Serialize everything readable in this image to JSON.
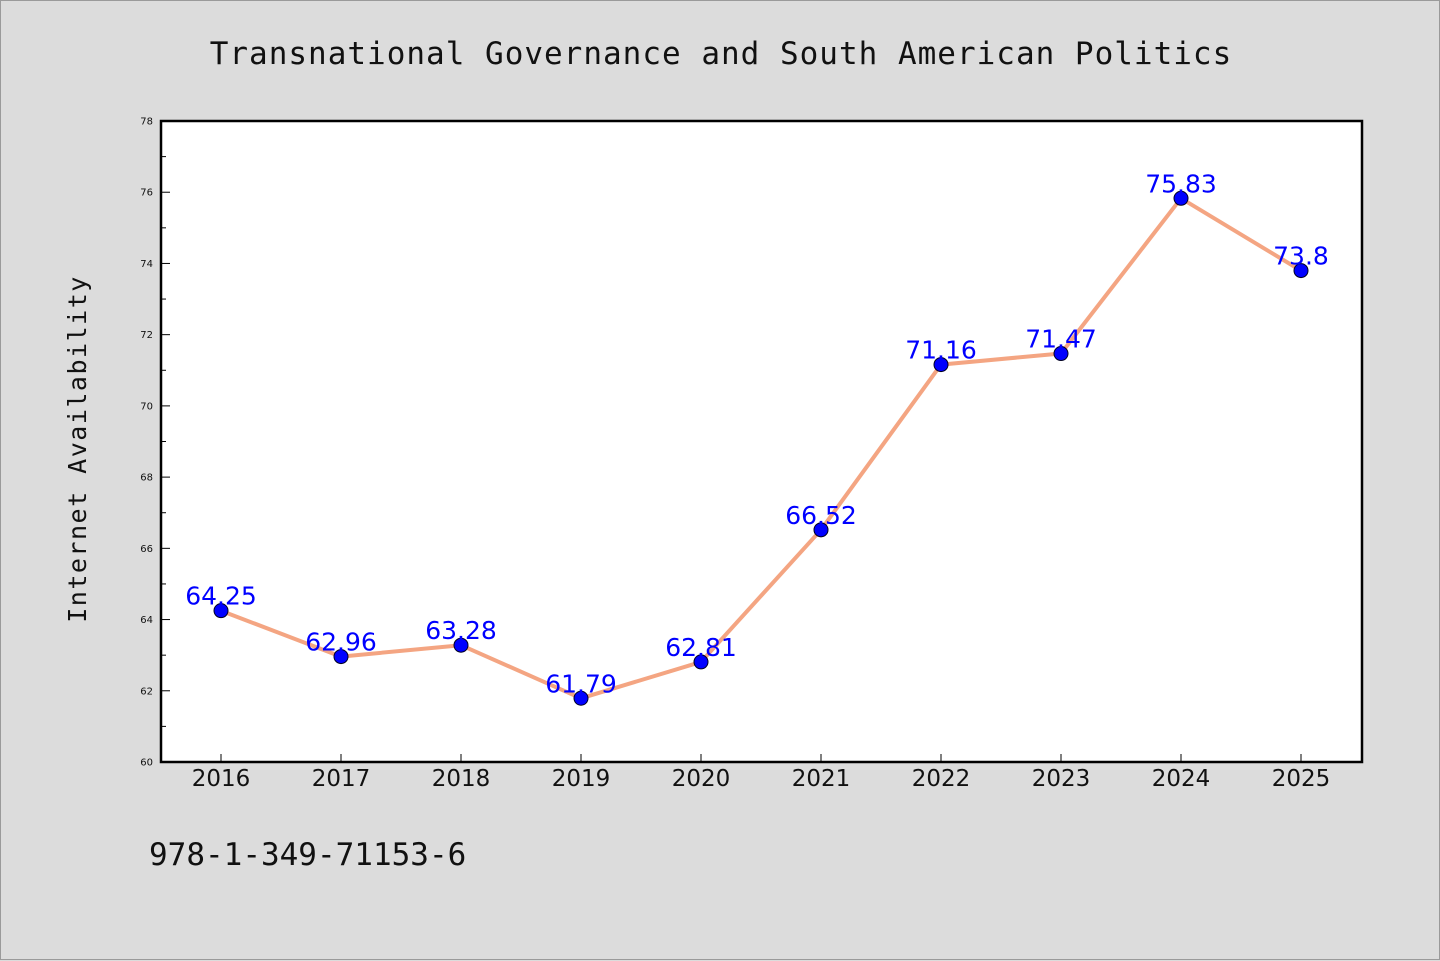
{
  "chart_data": {
    "type": "line",
    "title": "Transnational Governance and South American Politics",
    "xlabel": "",
    "ylabel": "Internet Availability",
    "categories": [
      "2016",
      "2017",
      "2018",
      "2019",
      "2020",
      "2021",
      "2022",
      "2023",
      "2024",
      "2025"
    ],
    "series": [
      {
        "values": [
          64.25,
          62.96,
          63.28,
          61.79,
          62.81,
          66.52,
          71.16,
          71.47,
          75.83,
          73.8
        ],
        "labels": [
          "64.25",
          "62.96",
          "63.28",
          "61.79",
          "62.81",
          "66.52",
          "71.16",
          "71.47",
          "75.83",
          "73.8"
        ],
        "line_color": "#f4a582",
        "marker_color": "#0000ff"
      }
    ],
    "ylim": [
      60,
      78
    ],
    "yticks": [
      "60",
      "62",
      "64",
      "66",
      "68",
      "70",
      "72",
      "74",
      "76",
      "78"
    ],
    "grid": false,
    "legend": "none",
    "data_label_color": "#0000ff"
  },
  "footer": {
    "isbn": "978-1-349-71153-6"
  },
  "colors": {
    "figure_background": "#dcdcdc",
    "plot_background": "#ffffff",
    "axes_edge": "#000000"
  }
}
